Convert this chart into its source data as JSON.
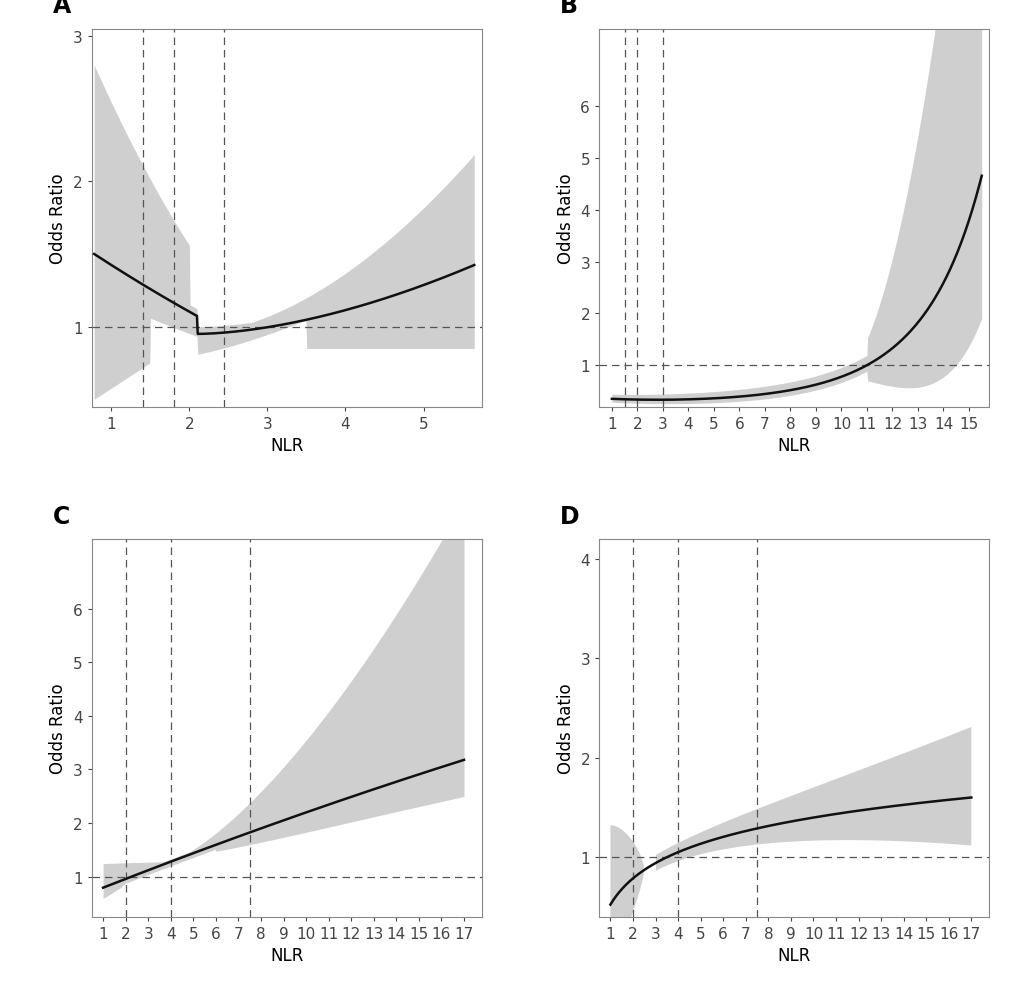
{
  "panels": [
    {
      "label": "A",
      "xlim": [
        0.75,
        5.75
      ],
      "ylim": [
        0.45,
        3.05
      ],
      "xticks": [
        1,
        2,
        3,
        4,
        5
      ],
      "yticks": [
        1.0,
        2.0,
        3.0
      ],
      "xlabel": "NLR",
      "ylabel": "Odds Ratio",
      "ref_y": 1.0,
      "vlines": [
        1.4,
        1.8,
        2.45
      ],
      "curve_type": "A",
      "x_start": 0.78,
      "x_end": 5.65
    },
    {
      "label": "B",
      "xlim": [
        0.5,
        15.8
      ],
      "ylim": [
        0.2,
        7.5
      ],
      "xticks": [
        1,
        2,
        3,
        4,
        5,
        6,
        7,
        8,
        9,
        10,
        11,
        12,
        13,
        14,
        15
      ],
      "yticks": [
        1.0,
        2.0,
        3.0,
        4.0,
        5.0,
        6.0
      ],
      "xlabel": "NLR",
      "ylabel": "Odds Ratio",
      "ref_y": 1.0,
      "vlines": [
        1.5,
        2.0,
        3.0
      ],
      "curve_type": "B",
      "x_start": 1.0,
      "x_end": 15.5
    },
    {
      "label": "C",
      "xlim": [
        0.5,
        17.8
      ],
      "ylim": [
        0.25,
        7.3
      ],
      "xticks": [
        1,
        2,
        3,
        4,
        5,
        6,
        7,
        8,
        9,
        10,
        11,
        12,
        13,
        14,
        15,
        16,
        17
      ],
      "yticks": [
        1.0,
        2.0,
        3.0,
        4.0,
        5.0,
        6.0
      ],
      "xlabel": "NLR",
      "ylabel": "Odds Ratio",
      "ref_y": 1.0,
      "vlines": [
        2.0,
        4.0,
        7.5
      ],
      "curve_type": "C",
      "x_start": 1.0,
      "x_end": 17.0
    },
    {
      "label": "D",
      "xlim": [
        0.5,
        17.8
      ],
      "ylim": [
        0.4,
        4.2
      ],
      "xticks": [
        1,
        2,
        3,
        4,
        5,
        6,
        7,
        8,
        9,
        10,
        11,
        12,
        13,
        14,
        15,
        16,
        17
      ],
      "yticks": [
        1.0,
        2.0,
        3.0,
        4.0
      ],
      "xlabel": "NLR",
      "ylabel": "Odds Ratio",
      "ref_y": 1.0,
      "vlines": [
        2.0,
        4.0,
        7.5
      ],
      "curve_type": "D",
      "x_start": 1.0,
      "x_end": 17.0
    }
  ],
  "bg_color": "#ffffff",
  "line_color": "#111111",
  "fill_color": "#c0c0c0",
  "fill_alpha": 0.75,
  "vline_color": "#555555",
  "hline_color": "#555555",
  "label_fontsize": 17,
  "axis_fontsize": 12,
  "tick_fontsize": 11
}
